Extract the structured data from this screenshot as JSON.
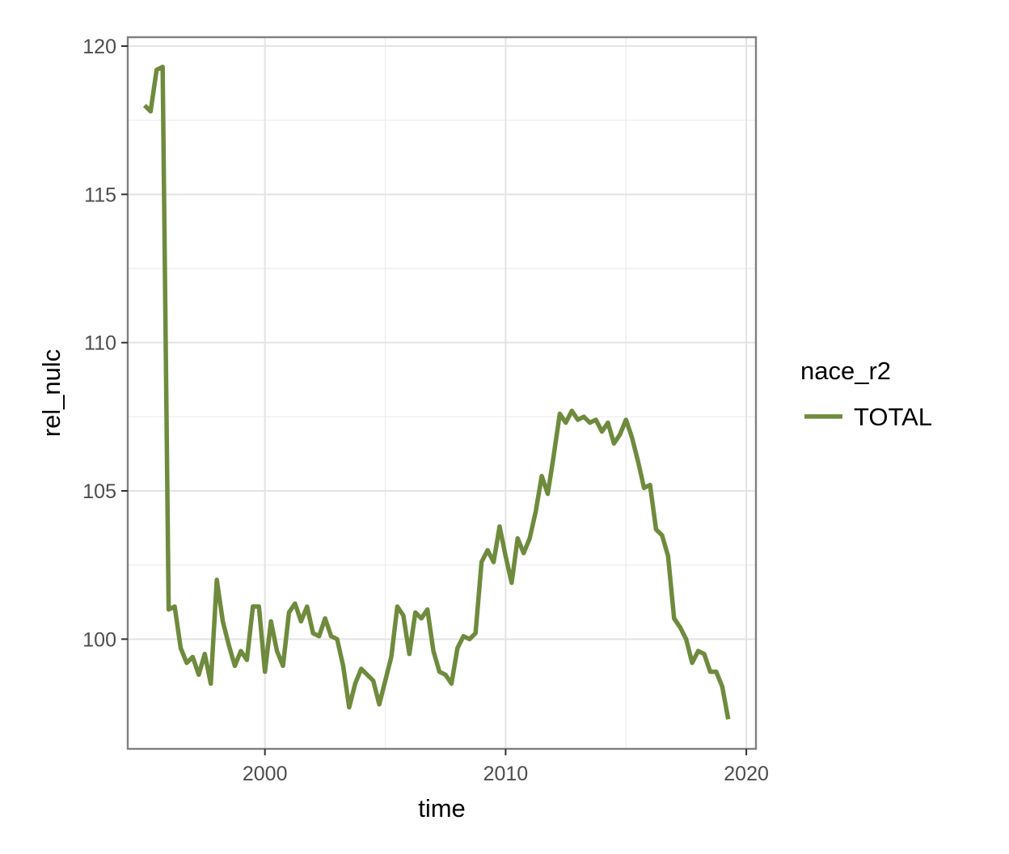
{
  "chart_data": {
    "type": "line",
    "xlabel": "time",
    "ylabel": "rel_nulc",
    "xlim": [
      1994.3,
      2020.4
    ],
    "ylim": [
      96.3,
      120.3
    ],
    "x_ticks": [
      2000,
      2010,
      2020
    ],
    "y_ticks": [
      100,
      105,
      110,
      115,
      120
    ],
    "grid": true,
    "legend": {
      "title": "nace_r2",
      "placement": "right"
    },
    "series": [
      {
        "name": "TOTAL",
        "color": "#6e8b3d",
        "x": [
          1995.0,
          1995.25,
          1995.5,
          1995.75,
          1996.0,
          1996.25,
          1996.5,
          1996.75,
          1997.0,
          1997.25,
          1997.5,
          1997.75,
          1998.0,
          1998.25,
          1998.5,
          1998.75,
          1999.0,
          1999.25,
          1999.5,
          1999.75,
          2000.0,
          2000.25,
          2000.5,
          2000.75,
          2001.0,
          2001.25,
          2001.5,
          2001.75,
          2002.0,
          2002.25,
          2002.5,
          2002.75,
          2003.0,
          2003.25,
          2003.5,
          2003.75,
          2004.0,
          2004.25,
          2004.5,
          2004.75,
          2005.0,
          2005.25,
          2005.5,
          2005.75,
          2006.0,
          2006.25,
          2006.5,
          2006.75,
          2007.0,
          2007.25,
          2007.5,
          2007.75,
          2008.0,
          2008.25,
          2008.5,
          2008.75,
          2009.0,
          2009.25,
          2009.5,
          2009.75,
          2010.0,
          2010.25,
          2010.5,
          2010.75,
          2011.0,
          2011.25,
          2011.5,
          2011.75,
          2012.0,
          2012.25,
          2012.5,
          2012.75,
          2013.0,
          2013.25,
          2013.5,
          2013.75,
          2014.0,
          2014.25,
          2014.5,
          2014.75,
          2015.0,
          2015.25,
          2015.5,
          2015.75,
          2016.0,
          2016.25,
          2016.5,
          2016.75,
          2017.0,
          2017.25,
          2017.5,
          2017.75,
          2018.0,
          2018.25,
          2018.5,
          2018.75,
          2019.0,
          2019.25
        ],
        "values": [
          118.0,
          117.8,
          119.2,
          119.3,
          101.0,
          101.1,
          99.7,
          99.2,
          99.4,
          98.8,
          99.5,
          98.5,
          102.0,
          100.6,
          99.8,
          99.1,
          99.6,
          99.3,
          101.1,
          101.1,
          98.9,
          100.6,
          99.6,
          99.1,
          100.9,
          101.2,
          100.6,
          101.1,
          100.2,
          100.1,
          100.7,
          100.1,
          100.0,
          99.1,
          97.7,
          98.5,
          99.0,
          98.8,
          98.6,
          97.8,
          98.6,
          99.4,
          101.1,
          100.8,
          99.5,
          100.9,
          100.7,
          101.0,
          99.6,
          98.9,
          98.8,
          98.5,
          99.7,
          100.1,
          100.0,
          100.2,
          102.6,
          103.0,
          102.6,
          103.8,
          102.8,
          101.9,
          103.4,
          102.9,
          103.4,
          104.3,
          105.5,
          104.9,
          106.2,
          107.6,
          107.3,
          107.7,
          107.4,
          107.5,
          107.3,
          107.4,
          107.0,
          107.3,
          106.6,
          106.9,
          107.4,
          106.8,
          106.0,
          105.1,
          105.2,
          103.7,
          103.5,
          102.8,
          100.7,
          100.4,
          100.0,
          99.2,
          99.6,
          99.5,
          98.9,
          98.9,
          98.4,
          97.3
        ]
      }
    ]
  }
}
